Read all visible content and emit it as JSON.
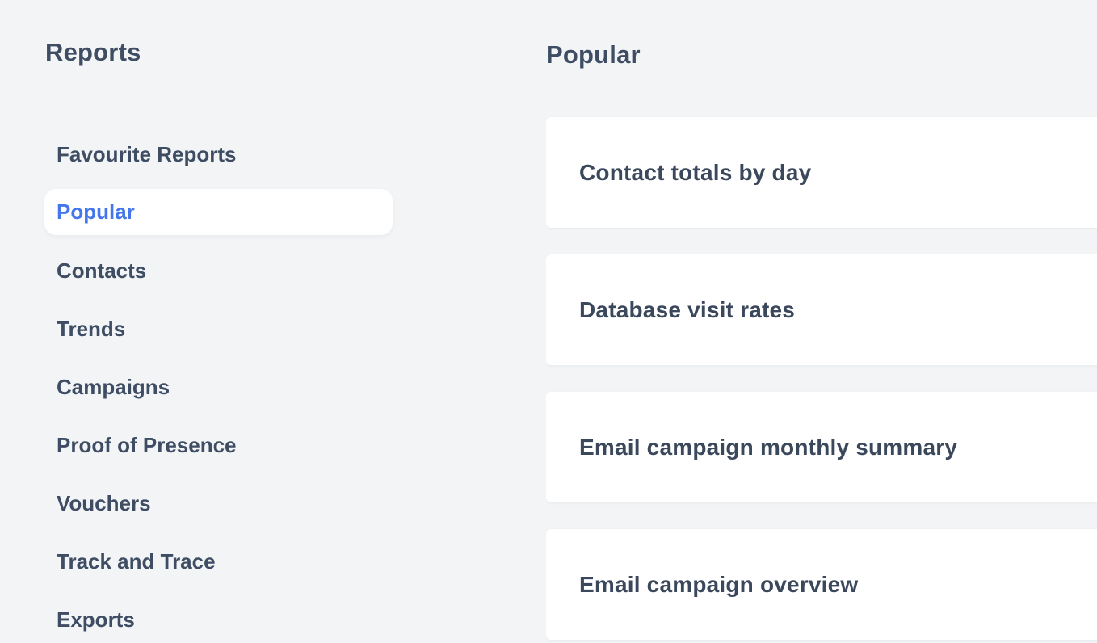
{
  "sidebar": {
    "title": "Reports",
    "items": [
      {
        "label": "Favourite Reports",
        "active": false
      },
      {
        "label": "Popular",
        "active": true
      },
      {
        "label": "Contacts",
        "active": false
      },
      {
        "label": "Trends",
        "active": false
      },
      {
        "label": "Campaigns",
        "active": false
      },
      {
        "label": "Proof of Presence",
        "active": false
      },
      {
        "label": "Vouchers",
        "active": false
      },
      {
        "label": "Track and Trace",
        "active": false
      },
      {
        "label": "Exports",
        "active": false
      }
    ]
  },
  "main": {
    "heading": "Popular",
    "cards": [
      {
        "title": "Contact totals by day"
      },
      {
        "title": "Database visit rates"
      },
      {
        "title": "Email campaign monthly summary"
      },
      {
        "title": "Email campaign overview"
      }
    ]
  },
  "colors": {
    "page_background": "#f2f4f6",
    "card_background": "#ffffff",
    "text_dark": "#3e4d63",
    "accent_blue": "#4377eb",
    "active_item_background": "#ffffff"
  }
}
